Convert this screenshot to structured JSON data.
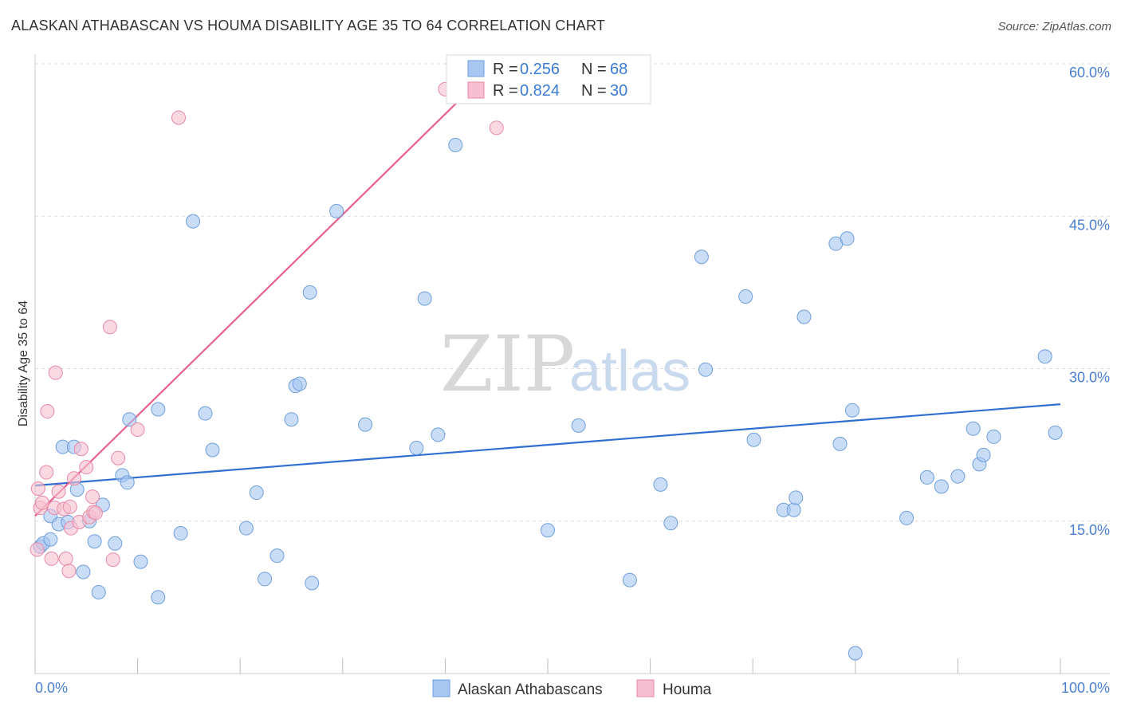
{
  "header": {
    "title": "ALASKAN ATHABASCAN VS HOUMA DISABILITY AGE 35 TO 64 CORRELATION CHART",
    "source": "Source: ZipAtlas.com"
  },
  "watermark": {
    "zip": "ZIP",
    "atlas": "atlas"
  },
  "chart_data": {
    "type": "scatter",
    "title": "ALASKAN ATHABASCAN VS HOUMA DISABILITY AGE 35 TO 64 CORRELATION CHART",
    "xlabel": "",
    "ylabel": "Disability Age 35 to 64",
    "xlim": [
      0,
      100
    ],
    "ylim": [
      0,
      60
    ],
    "x_tick_labels": [
      "0.0%",
      "100.0%"
    ],
    "y_ticks": [
      15,
      30,
      45,
      60
    ],
    "y_tick_labels": [
      "15.0%",
      "30.0%",
      "45.0%",
      "60.0%"
    ],
    "grid": true,
    "legend_position": "top-center",
    "series": [
      {
        "name": "Alaskan Athabascans",
        "color": "#a7c7f2",
        "stroke": "#6f9fdc",
        "R": "0.256",
        "N": "68",
        "trendline": {
          "x": [
            0,
            100
          ],
          "y": [
            18.5,
            26.5
          ],
          "color": "#2e6fd0"
        },
        "points": [
          [
            0.5,
            12.5
          ],
          [
            0.8,
            12.8
          ],
          [
            1.5,
            13.2
          ],
          [
            1.5,
            15.5
          ],
          [
            2.3,
            14.7
          ],
          [
            2.7,
            22.3
          ],
          [
            3.2,
            14.9
          ],
          [
            3.8,
            22.3
          ],
          [
            4.1,
            18.1
          ],
          [
            4.7,
            10.0
          ],
          [
            5.3,
            15.0
          ],
          [
            5.8,
            13.0
          ],
          [
            6.2,
            8.0
          ],
          [
            6.6,
            16.6
          ],
          [
            7.8,
            12.8
          ],
          [
            8.5,
            19.5
          ],
          [
            9.0,
            18.8
          ],
          [
            9.2,
            25.0
          ],
          [
            10.3,
            11.0
          ],
          [
            12.0,
            7.5
          ],
          [
            12.0,
            26.0
          ],
          [
            14.2,
            13.8
          ],
          [
            15.4,
            44.5
          ],
          [
            16.6,
            25.6
          ],
          [
            17.3,
            22.0
          ],
          [
            20.6,
            14.3
          ],
          [
            21.6,
            17.8
          ],
          [
            22.4,
            9.3
          ],
          [
            23.6,
            11.6
          ],
          [
            25.0,
            25.0
          ],
          [
            25.4,
            28.3
          ],
          [
            25.8,
            28.5
          ],
          [
            26.8,
            37.5
          ],
          [
            27.0,
            8.9
          ],
          [
            29.4,
            45.5
          ],
          [
            32.2,
            24.5
          ],
          [
            37.2,
            22.2
          ],
          [
            38.0,
            36.9
          ],
          [
            39.3,
            23.5
          ],
          [
            41.0,
            52.0
          ],
          [
            50.0,
            14.1
          ],
          [
            53.0,
            24.4
          ],
          [
            58.0,
            9.2
          ],
          [
            61.0,
            18.6
          ],
          [
            62.0,
            14.8
          ],
          [
            65.0,
            41.0
          ],
          [
            65.4,
            29.9
          ],
          [
            69.3,
            37.1
          ],
          [
            70.1,
            23.0
          ],
          [
            73.0,
            16.1
          ],
          [
            74.0,
            16.1
          ],
          [
            74.2,
            17.3
          ],
          [
            75.0,
            35.1
          ],
          [
            78.1,
            42.3
          ],
          [
            78.5,
            22.6
          ],
          [
            79.2,
            42.8
          ],
          [
            79.7,
            25.9
          ],
          [
            80.0,
            2.0
          ],
          [
            85.0,
            15.3
          ],
          [
            87.0,
            19.3
          ],
          [
            88.4,
            18.4
          ],
          [
            90.0,
            19.4
          ],
          [
            91.5,
            24.1
          ],
          [
            92.1,
            20.6
          ],
          [
            92.5,
            21.5
          ],
          [
            93.5,
            23.3
          ],
          [
            98.5,
            31.2
          ],
          [
            99.5,
            23.7
          ]
        ]
      },
      {
        "name": "Houma",
        "color": "#f7bfd1",
        "stroke": "#e88aa8",
        "R": "0.824",
        "N": "30",
        "trendline": {
          "x": [
            0,
            45
          ],
          "y": [
            15.5,
            60
          ],
          "color": "#e8608d"
        },
        "points": [
          [
            0.3,
            18.2
          ],
          [
            0.5,
            16.3
          ],
          [
            0.7,
            16.8
          ],
          [
            1.1,
            19.8
          ],
          [
            1.2,
            25.8
          ],
          [
            1.6,
            11.3
          ],
          [
            1.9,
            16.3
          ],
          [
            2.0,
            29.6
          ],
          [
            2.3,
            17.9
          ],
          [
            2.8,
            16.2
          ],
          [
            3.0,
            11.3
          ],
          [
            3.3,
            10.1
          ],
          [
            3.4,
            16.4
          ],
          [
            3.5,
            14.3
          ],
          [
            3.8,
            19.2
          ],
          [
            4.3,
            14.9
          ],
          [
            4.5,
            22.1
          ],
          [
            5.0,
            20.3
          ],
          [
            5.3,
            15.4
          ],
          [
            5.6,
            17.4
          ],
          [
            5.7,
            15.9
          ],
          [
            5.9,
            15.8
          ],
          [
            7.3,
            34.1
          ],
          [
            7.6,
            11.2
          ],
          [
            8.1,
            21.2
          ],
          [
            10.0,
            24.0
          ],
          [
            14.0,
            54.7
          ],
          [
            40.0,
            57.5
          ],
          [
            45.0,
            53.7
          ],
          [
            0.2,
            12.2
          ]
        ]
      }
    ]
  }
}
